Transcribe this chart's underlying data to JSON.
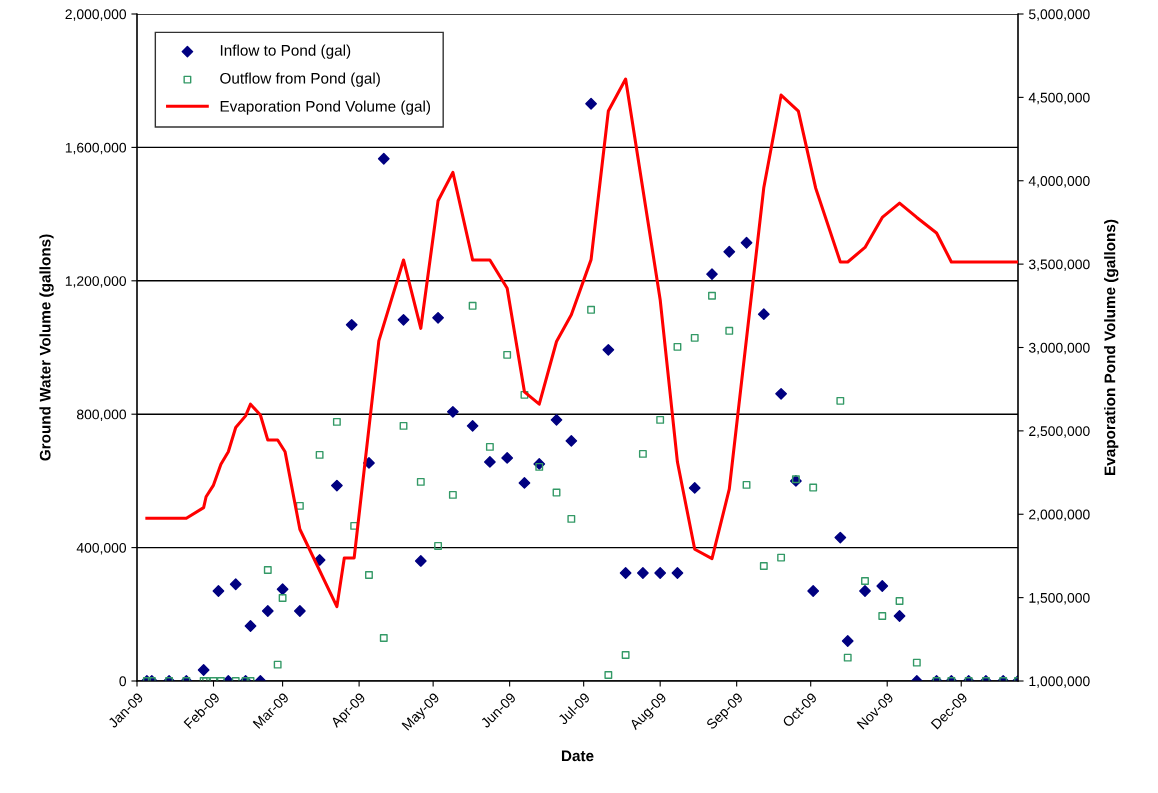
{
  "chart_data": {
    "type": "scatter",
    "xlabel": "Date",
    "ylabel": "Ground Water Volume (gallons)",
    "y2label": "Evaporation Pond Volume (gallons)",
    "xlim": [
      "2009-01-01",
      "2009-12-24"
    ],
    "xticks": [
      {
        "value": "2009-01-01",
        "label": "Jan-09"
      },
      {
        "value": "2009-02-01",
        "label": "Feb-09"
      },
      {
        "value": "2009-03-01",
        "label": "Mar-09"
      },
      {
        "value": "2009-04-01",
        "label": "Apr-09"
      },
      {
        "value": "2009-05-01",
        "label": "May-09"
      },
      {
        "value": "2009-06-01",
        "label": "Jun-09"
      },
      {
        "value": "2009-07-01",
        "label": "Jul-09"
      },
      {
        "value": "2009-08-01",
        "label": "Aug-09"
      },
      {
        "value": "2009-09-01",
        "label": "Sep-09"
      },
      {
        "value": "2009-10-01",
        "label": "Oct-09"
      },
      {
        "value": "2009-11-01",
        "label": "Nov-09"
      },
      {
        "value": "2009-12-01",
        "label": "Dec-09"
      }
    ],
    "ylim": [
      0,
      2000000
    ],
    "yticks": [
      {
        "value": 0,
        "label": "0"
      },
      {
        "value": 400000,
        "label": "400,000"
      },
      {
        "value": 800000,
        "label": "800,000"
      },
      {
        "value": 1200000,
        "label": "1,200,000"
      },
      {
        "value": 1600000,
        "label": "1,600,000"
      },
      {
        "value": 2000000,
        "label": "2,000,000"
      }
    ],
    "y2lim": [
      1000000,
      5000000
    ],
    "y2ticks": [
      {
        "value": 1000000,
        "label": "1,000,000"
      },
      {
        "value": 1500000,
        "label": "1,500,000"
      },
      {
        "value": 2000000,
        "label": "2,000,000"
      },
      {
        "value": 2500000,
        "label": "2,500,000"
      },
      {
        "value": 3000000,
        "label": "3,000,000"
      },
      {
        "value": 3500000,
        "label": "3,500,000"
      },
      {
        "value": 4000000,
        "label": "4,000,000"
      },
      {
        "value": 4500000,
        "label": "4,500,000"
      },
      {
        "value": 5000000,
        "label": "5,000,000"
      }
    ],
    "grid": "y",
    "legend": "top left",
    "series": [
      {
        "name": "Inflow to Pond (gal)",
        "marker": "diamond",
        "color": "#000080",
        "x": [
          "2009-01-05",
          "2009-01-07",
          "2009-01-14",
          "2009-01-21",
          "2009-01-28",
          "2009-02-03",
          "2009-02-07",
          "2009-02-10",
          "2009-02-14",
          "2009-02-16",
          "2009-02-20",
          "2009-02-23",
          "2009-03-01",
          "2009-03-08",
          "2009-03-16",
          "2009-03-23",
          "2009-03-29",
          "2009-04-05",
          "2009-04-11",
          "2009-04-19",
          "2009-04-26",
          "2009-05-03",
          "2009-05-09",
          "2009-05-17",
          "2009-05-24",
          "2009-05-31",
          "2009-06-07",
          "2009-06-13",
          "2009-06-20",
          "2009-06-26",
          "2009-07-04",
          "2009-07-11",
          "2009-07-18",
          "2009-07-25",
          "2009-08-01",
          "2009-08-08",
          "2009-08-15",
          "2009-08-22",
          "2009-08-29",
          "2009-09-05",
          "2009-09-12",
          "2009-09-19",
          "2009-09-25",
          "2009-10-02",
          "2009-10-13",
          "2009-10-16",
          "2009-10-23",
          "2009-10-30",
          "2009-11-06",
          "2009-11-13",
          "2009-11-21",
          "2009-11-27",
          "2009-12-04",
          "2009-12-11",
          "2009-12-18",
          "2009-12-24"
        ],
        "values": [
          0,
          0,
          0,
          0,
          33000,
          270000,
          0,
          290000,
          0,
          165000,
          0,
          210000,
          275000,
          210000,
          363000,
          586000,
          1068000,
          654000,
          1566000,
          1083000,
          360000,
          1089000,
          807000,
          765000,
          657000,
          669000,
          594000,
          651000,
          783000,
          720000,
          1731000,
          993000,
          324000,
          324000,
          324000,
          324000,
          579000,
          1220000,
          1287000,
          1314000,
          1100000,
          861000,
          600000,
          270000,
          430000,
          120000,
          270000,
          285000,
          195000,
          0,
          0,
          0,
          0,
          0,
          0,
          0
        ]
      },
      {
        "name": "Outflow from Pond (gal)",
        "marker": "square",
        "color": "#339966",
        "x": [
          "2009-01-05",
          "2009-01-07",
          "2009-01-14",
          "2009-01-21",
          "2009-01-28",
          "2009-01-29",
          "2009-02-01",
          "2009-02-04",
          "2009-02-10",
          "2009-02-14",
          "2009-02-16",
          "2009-02-23",
          "2009-02-27",
          "2009-03-01",
          "2009-03-08",
          "2009-03-16",
          "2009-03-23",
          "2009-03-30",
          "2009-04-05",
          "2009-04-11",
          "2009-04-19",
          "2009-04-26",
          "2009-05-03",
          "2009-05-09",
          "2009-05-17",
          "2009-05-24",
          "2009-05-31",
          "2009-06-07",
          "2009-06-13",
          "2009-06-20",
          "2009-06-26",
          "2009-07-04",
          "2009-07-11",
          "2009-07-18",
          "2009-07-25",
          "2009-08-01",
          "2009-08-08",
          "2009-08-15",
          "2009-08-22",
          "2009-08-29",
          "2009-09-05",
          "2009-09-12",
          "2009-09-19",
          "2009-09-25",
          "2009-10-02",
          "2009-10-13",
          "2009-10-16",
          "2009-10-23",
          "2009-10-30",
          "2009-11-06",
          "2009-11-13",
          "2009-11-21",
          "2009-11-27",
          "2009-12-04",
          "2009-12-11",
          "2009-12-18",
          "2009-12-24"
        ],
        "values": [
          0,
          0,
          0,
          0,
          0,
          0,
          0,
          0,
          0,
          0,
          0,
          333000,
          49000,
          249000,
          525000,
          678000,
          777000,
          465000,
          318000,
          129000,
          765000,
          597000,
          405000,
          558000,
          1125000,
          702000,
          978000,
          858000,
          642000,
          565000,
          486000,
          1113000,
          18000,
          78000,
          681000,
          783000,
          1002000,
          1029000,
          1155000,
          1050000,
          588000,
          345000,
          370000,
          605000,
          580000,
          840000,
          70000,
          300000,
          195000,
          240000,
          55000,
          0,
          0,
          0,
          0,
          0,
          0
        ]
      },
      {
        "name": "Evaporation Pond Volume (gal)",
        "type": "line",
        "axis": "y2",
        "marker": "none",
        "line_style": "solid",
        "color": "#ff0000",
        "x": [
          "2009-01-05",
          "2009-01-21",
          "2009-01-28",
          "2009-01-29",
          "2009-02-01",
          "2009-02-04",
          "2009-02-07",
          "2009-02-10",
          "2009-02-14",
          "2009-02-16",
          "2009-02-20",
          "2009-02-23",
          "2009-02-27",
          "2009-03-02",
          "2009-03-08",
          "2009-03-23",
          "2009-03-26",
          "2009-03-30",
          "2009-04-09",
          "2009-04-19",
          "2009-04-26",
          "2009-05-03",
          "2009-05-09",
          "2009-05-17",
          "2009-05-24",
          "2009-05-31",
          "2009-06-07",
          "2009-06-13",
          "2009-06-20",
          "2009-06-26",
          "2009-07-04",
          "2009-07-11",
          "2009-07-18",
          "2009-08-01",
          "2009-08-08",
          "2009-08-15",
          "2009-08-22",
          "2009-08-29",
          "2009-09-12",
          "2009-09-19",
          "2009-09-26",
          "2009-10-03",
          "2009-10-13",
          "2009-10-16",
          "2009-10-23",
          "2009-10-30",
          "2009-11-06",
          "2009-11-13",
          "2009-11-21",
          "2009-11-27",
          "2009-12-24"
        ],
        "values": [
          1976000,
          1976000,
          2040000,
          2105000,
          2175000,
          2300000,
          2375000,
          2520000,
          2590000,
          2660000,
          2595000,
          2445000,
          2445000,
          2375000,
          1910000,
          1446000,
          1738000,
          1738000,
          3040000,
          3525000,
          3115000,
          3880000,
          4050000,
          3525000,
          3525000,
          3355000,
          2734000,
          2660000,
          3036000,
          3197000,
          3527000,
          4418000,
          4610000,
          3287000,
          2313000,
          1790000,
          1734000,
          2150000,
          3960000,
          4514000,
          4418000,
          3957000,
          3513000,
          3513000,
          3600000,
          3780000,
          3866000,
          3780000,
          3687000,
          3513000,
          3513000
        ]
      }
    ]
  }
}
